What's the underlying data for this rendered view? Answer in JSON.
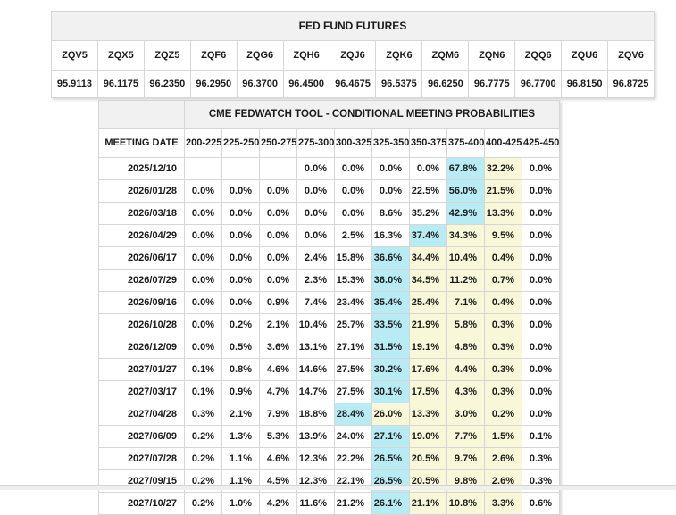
{
  "colors": {
    "highlight_max": "#b7ecf5",
    "highlight_band": "#f8f8d9",
    "header_bg": "#f1f1f1"
  },
  "futures_table": {
    "title": "FED FUND FUTURES",
    "symbols": [
      "ZQV5",
      "ZQX5",
      "ZQZ5",
      "ZQF6",
      "ZQG6",
      "ZQH6",
      "ZQJ6",
      "ZQK6",
      "ZQM6",
      "ZQN6",
      "ZQQ6",
      "ZQU6",
      "ZQV6"
    ],
    "prices": [
      "95.9113",
      "96.1175",
      "96.2350",
      "96.2950",
      "96.3700",
      "96.4500",
      "96.4675",
      "96.5375",
      "96.6250",
      "96.7775",
      "96.7700",
      "96.8150",
      "96.8725"
    ]
  },
  "fedwatch_table": {
    "title": "CME FEDWATCH TOOL - CONDITIONAL MEETING PROBABILITIES",
    "date_header": "MEETING DATE",
    "range_headers": [
      "200-225",
      "225-250",
      "250-275",
      "275-300",
      "300-325",
      "325-350",
      "350-375",
      "375-400",
      "400-425",
      "425-450"
    ],
    "rows": [
      {
        "date": "2025/12/10",
        "values": [
          "",
          "",
          "",
          "0.0%",
          "0.0%",
          "0.0%",
          "0.0%",
          "67.8%",
          "32.2%",
          "0.0%"
        ],
        "highlights": [
          "",
          "",
          "",
          "",
          "",
          "",
          "",
          "cyan",
          "yellow",
          ""
        ]
      },
      {
        "date": "2026/01/28",
        "values": [
          "0.0%",
          "0.0%",
          "0.0%",
          "0.0%",
          "0.0%",
          "0.0%",
          "22.5%",
          "56.0%",
          "21.5%",
          "0.0%"
        ],
        "highlights": [
          "",
          "",
          "",
          "",
          "",
          "",
          "",
          "cyan",
          "yellow",
          ""
        ]
      },
      {
        "date": "2026/03/18",
        "values": [
          "0.0%",
          "0.0%",
          "0.0%",
          "0.0%",
          "0.0%",
          "8.6%",
          "35.2%",
          "42.9%",
          "13.3%",
          "0.0%"
        ],
        "highlights": [
          "",
          "",
          "",
          "",
          "",
          "",
          "",
          "cyan",
          "yellow",
          ""
        ]
      },
      {
        "date": "2026/04/29",
        "values": [
          "0.0%",
          "0.0%",
          "0.0%",
          "0.0%",
          "2.5%",
          "16.3%",
          "37.4%",
          "34.3%",
          "9.5%",
          "0.0%"
        ],
        "highlights": [
          "",
          "",
          "",
          "",
          "",
          "",
          "cyan",
          "yellow",
          "yellow",
          ""
        ]
      },
      {
        "date": "2026/06/17",
        "values": [
          "0.0%",
          "0.0%",
          "0.0%",
          "2.4%",
          "15.8%",
          "36.6%",
          "34.4%",
          "10.4%",
          "0.4%",
          "0.0%"
        ],
        "highlights": [
          "",
          "",
          "",
          "",
          "",
          "cyan",
          "yellow",
          "yellow",
          "yellow",
          ""
        ]
      },
      {
        "date": "2026/07/29",
        "values": [
          "0.0%",
          "0.0%",
          "0.0%",
          "2.3%",
          "15.3%",
          "36.0%",
          "34.5%",
          "11.2%",
          "0.7%",
          "0.0%"
        ],
        "highlights": [
          "",
          "",
          "",
          "",
          "",
          "cyan",
          "yellow",
          "yellow",
          "yellow",
          ""
        ]
      },
      {
        "date": "2026/09/16",
        "values": [
          "0.0%",
          "0.0%",
          "0.9%",
          "7.4%",
          "23.4%",
          "35.4%",
          "25.4%",
          "7.1%",
          "0.4%",
          "0.0%"
        ],
        "highlights": [
          "",
          "",
          "",
          "",
          "",
          "cyan",
          "yellow",
          "yellow",
          "yellow",
          ""
        ]
      },
      {
        "date": "2026/10/28",
        "values": [
          "0.0%",
          "0.2%",
          "2.1%",
          "10.4%",
          "25.7%",
          "33.5%",
          "21.9%",
          "5.8%",
          "0.3%",
          "0.0%"
        ],
        "highlights": [
          "",
          "",
          "",
          "",
          "",
          "cyan",
          "yellow",
          "yellow",
          "yellow",
          ""
        ]
      },
      {
        "date": "2026/12/09",
        "values": [
          "0.0%",
          "0.5%",
          "3.6%",
          "13.1%",
          "27.1%",
          "31.5%",
          "19.1%",
          "4.8%",
          "0.3%",
          "0.0%"
        ],
        "highlights": [
          "",
          "",
          "",
          "",
          "",
          "cyan",
          "yellow",
          "yellow",
          "yellow",
          ""
        ]
      },
      {
        "date": "2027/01/27",
        "values": [
          "0.1%",
          "0.8%",
          "4.6%",
          "14.6%",
          "27.5%",
          "30.2%",
          "17.6%",
          "4.4%",
          "0.3%",
          "0.0%"
        ],
        "highlights": [
          "",
          "",
          "",
          "",
          "",
          "cyan",
          "yellow",
          "yellow",
          "yellow",
          ""
        ]
      },
      {
        "date": "2027/03/17",
        "values": [
          "0.1%",
          "0.9%",
          "4.7%",
          "14.7%",
          "27.5%",
          "30.1%",
          "17.5%",
          "4.3%",
          "0.3%",
          "0.0%"
        ],
        "highlights": [
          "",
          "",
          "",
          "",
          "",
          "cyan",
          "yellow",
          "yellow",
          "yellow",
          ""
        ]
      },
      {
        "date": "2027/04/28",
        "values": [
          "0.3%",
          "2.1%",
          "7.9%",
          "18.8%",
          "28.4%",
          "26.0%",
          "13.3%",
          "3.0%",
          "0.2%",
          "0.0%"
        ],
        "highlights": [
          "",
          "",
          "",
          "",
          "cyan",
          "yellow",
          "yellow",
          "yellow",
          "yellow",
          ""
        ]
      },
      {
        "date": "2027/06/09",
        "values": [
          "0.2%",
          "1.3%",
          "5.3%",
          "13.9%",
          "24.0%",
          "27.1%",
          "19.0%",
          "7.7%",
          "1.5%",
          "0.1%"
        ],
        "highlights": [
          "",
          "",
          "",
          "",
          "",
          "cyan",
          "yellow",
          "yellow",
          "yellow",
          ""
        ]
      },
      {
        "date": "2027/07/28",
        "values": [
          "0.2%",
          "1.1%",
          "4.6%",
          "12.3%",
          "22.2%",
          "26.5%",
          "20.5%",
          "9.7%",
          "2.6%",
          "0.3%"
        ],
        "highlights": [
          "",
          "",
          "",
          "",
          "",
          "cyan",
          "yellow",
          "yellow",
          "yellow",
          ""
        ]
      },
      {
        "date": "2027/09/15",
        "values": [
          "0.2%",
          "1.1%",
          "4.5%",
          "12.3%",
          "22.1%",
          "26.5%",
          "20.5%",
          "9.8%",
          "2.6%",
          "0.3%"
        ],
        "highlights": [
          "",
          "",
          "",
          "",
          "",
          "cyan",
          "yellow",
          "yellow",
          "yellow",
          ""
        ]
      },
      {
        "date": "2027/10/27",
        "values": [
          "0.2%",
          "1.0%",
          "4.2%",
          "11.6%",
          "21.2%",
          "26.1%",
          "21.1%",
          "10.8%",
          "3.3%",
          "0.6%"
        ],
        "highlights": [
          "",
          "",
          "",
          "",
          "",
          "cyan",
          "yellow",
          "yellow",
          "yellow",
          ""
        ]
      }
    ]
  }
}
